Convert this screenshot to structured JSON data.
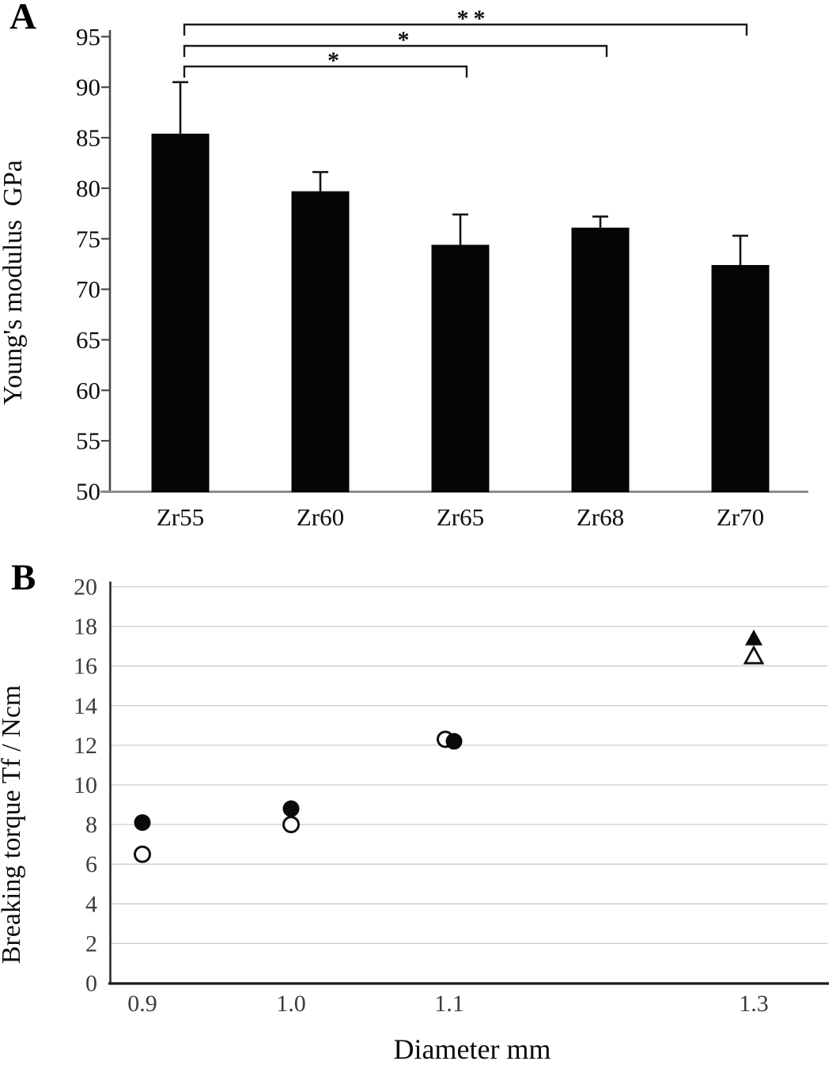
{
  "figure": {
    "panel_a_letter": "A",
    "panel_b_letter": "B"
  },
  "chart_data": [
    {
      "id": "panel-a",
      "type": "bar",
      "title": "",
      "xlabel": "",
      "ylabel": "Young's modulus  GPa",
      "categories": [
        "Zr55",
        "Zr60",
        "Zr65",
        "Zr68",
        "Zr70"
      ],
      "values": [
        85.4,
        79.7,
        74.4,
        76.1,
        72.4
      ],
      "error_up": [
        5.1,
        1.9,
        3.0,
        1.1,
        2.9
      ],
      "ylim": [
        50,
        97
      ],
      "yticks": [
        50,
        55,
        60,
        65,
        70,
        75,
        80,
        85,
        90,
        95
      ],
      "grid": false,
      "bar_color": "#050505",
      "significance": [
        {
          "from": "Zr55",
          "to": "Zr65",
          "label": "*"
        },
        {
          "from": "Zr55",
          "to": "Zr68",
          "label": "*"
        },
        {
          "from": "Zr55",
          "to": "Zr70",
          "label": "**"
        }
      ]
    },
    {
      "id": "panel-b",
      "type": "scatter",
      "title": "",
      "xlabel": "Diameter mm",
      "ylabel": "Breaking torque Tf / Ncm",
      "xticks": [
        "0.9",
        "1.0",
        "1.1",
        "1.3"
      ],
      "ylim": [
        0,
        20
      ],
      "yticks": [
        0,
        2,
        4,
        6,
        8,
        10,
        12,
        14,
        16,
        18,
        20
      ],
      "grid": true,
      "legend": "none",
      "series": [
        {
          "name": "open-circle",
          "marker": "circle-open",
          "points": [
            {
              "x": "0.9",
              "y": 6.5
            },
            {
              "x": "1.0",
              "y": 8.0
            },
            {
              "x": "1.1",
              "y": 12.3,
              "dx": -5
            }
          ]
        },
        {
          "name": "filled-circle",
          "marker": "circle-filled",
          "points": [
            {
              "x": "0.9",
              "y": 8.1
            },
            {
              "x": "1.0",
              "y": 8.8
            },
            {
              "x": "1.1",
              "y": 12.2,
              "dx": 6
            }
          ]
        },
        {
          "name": "open-triangle",
          "marker": "triangle-open",
          "points": [
            {
              "x": "1.3",
              "y": 16.5
            }
          ]
        },
        {
          "name": "filled-triangle",
          "marker": "triangle-filled",
          "points": [
            {
              "x": "1.3",
              "y": 17.4
            }
          ]
        }
      ]
    }
  ],
  "colors": {
    "bar": "#050505",
    "marker": "#0a0a0a",
    "grid": "#cccccc",
    "axis_a_y": "#4a4a4a",
    "axis_a_base": "#8c8c8c",
    "axis_b": "#222222",
    "bracket": "#1a1a1a"
  }
}
